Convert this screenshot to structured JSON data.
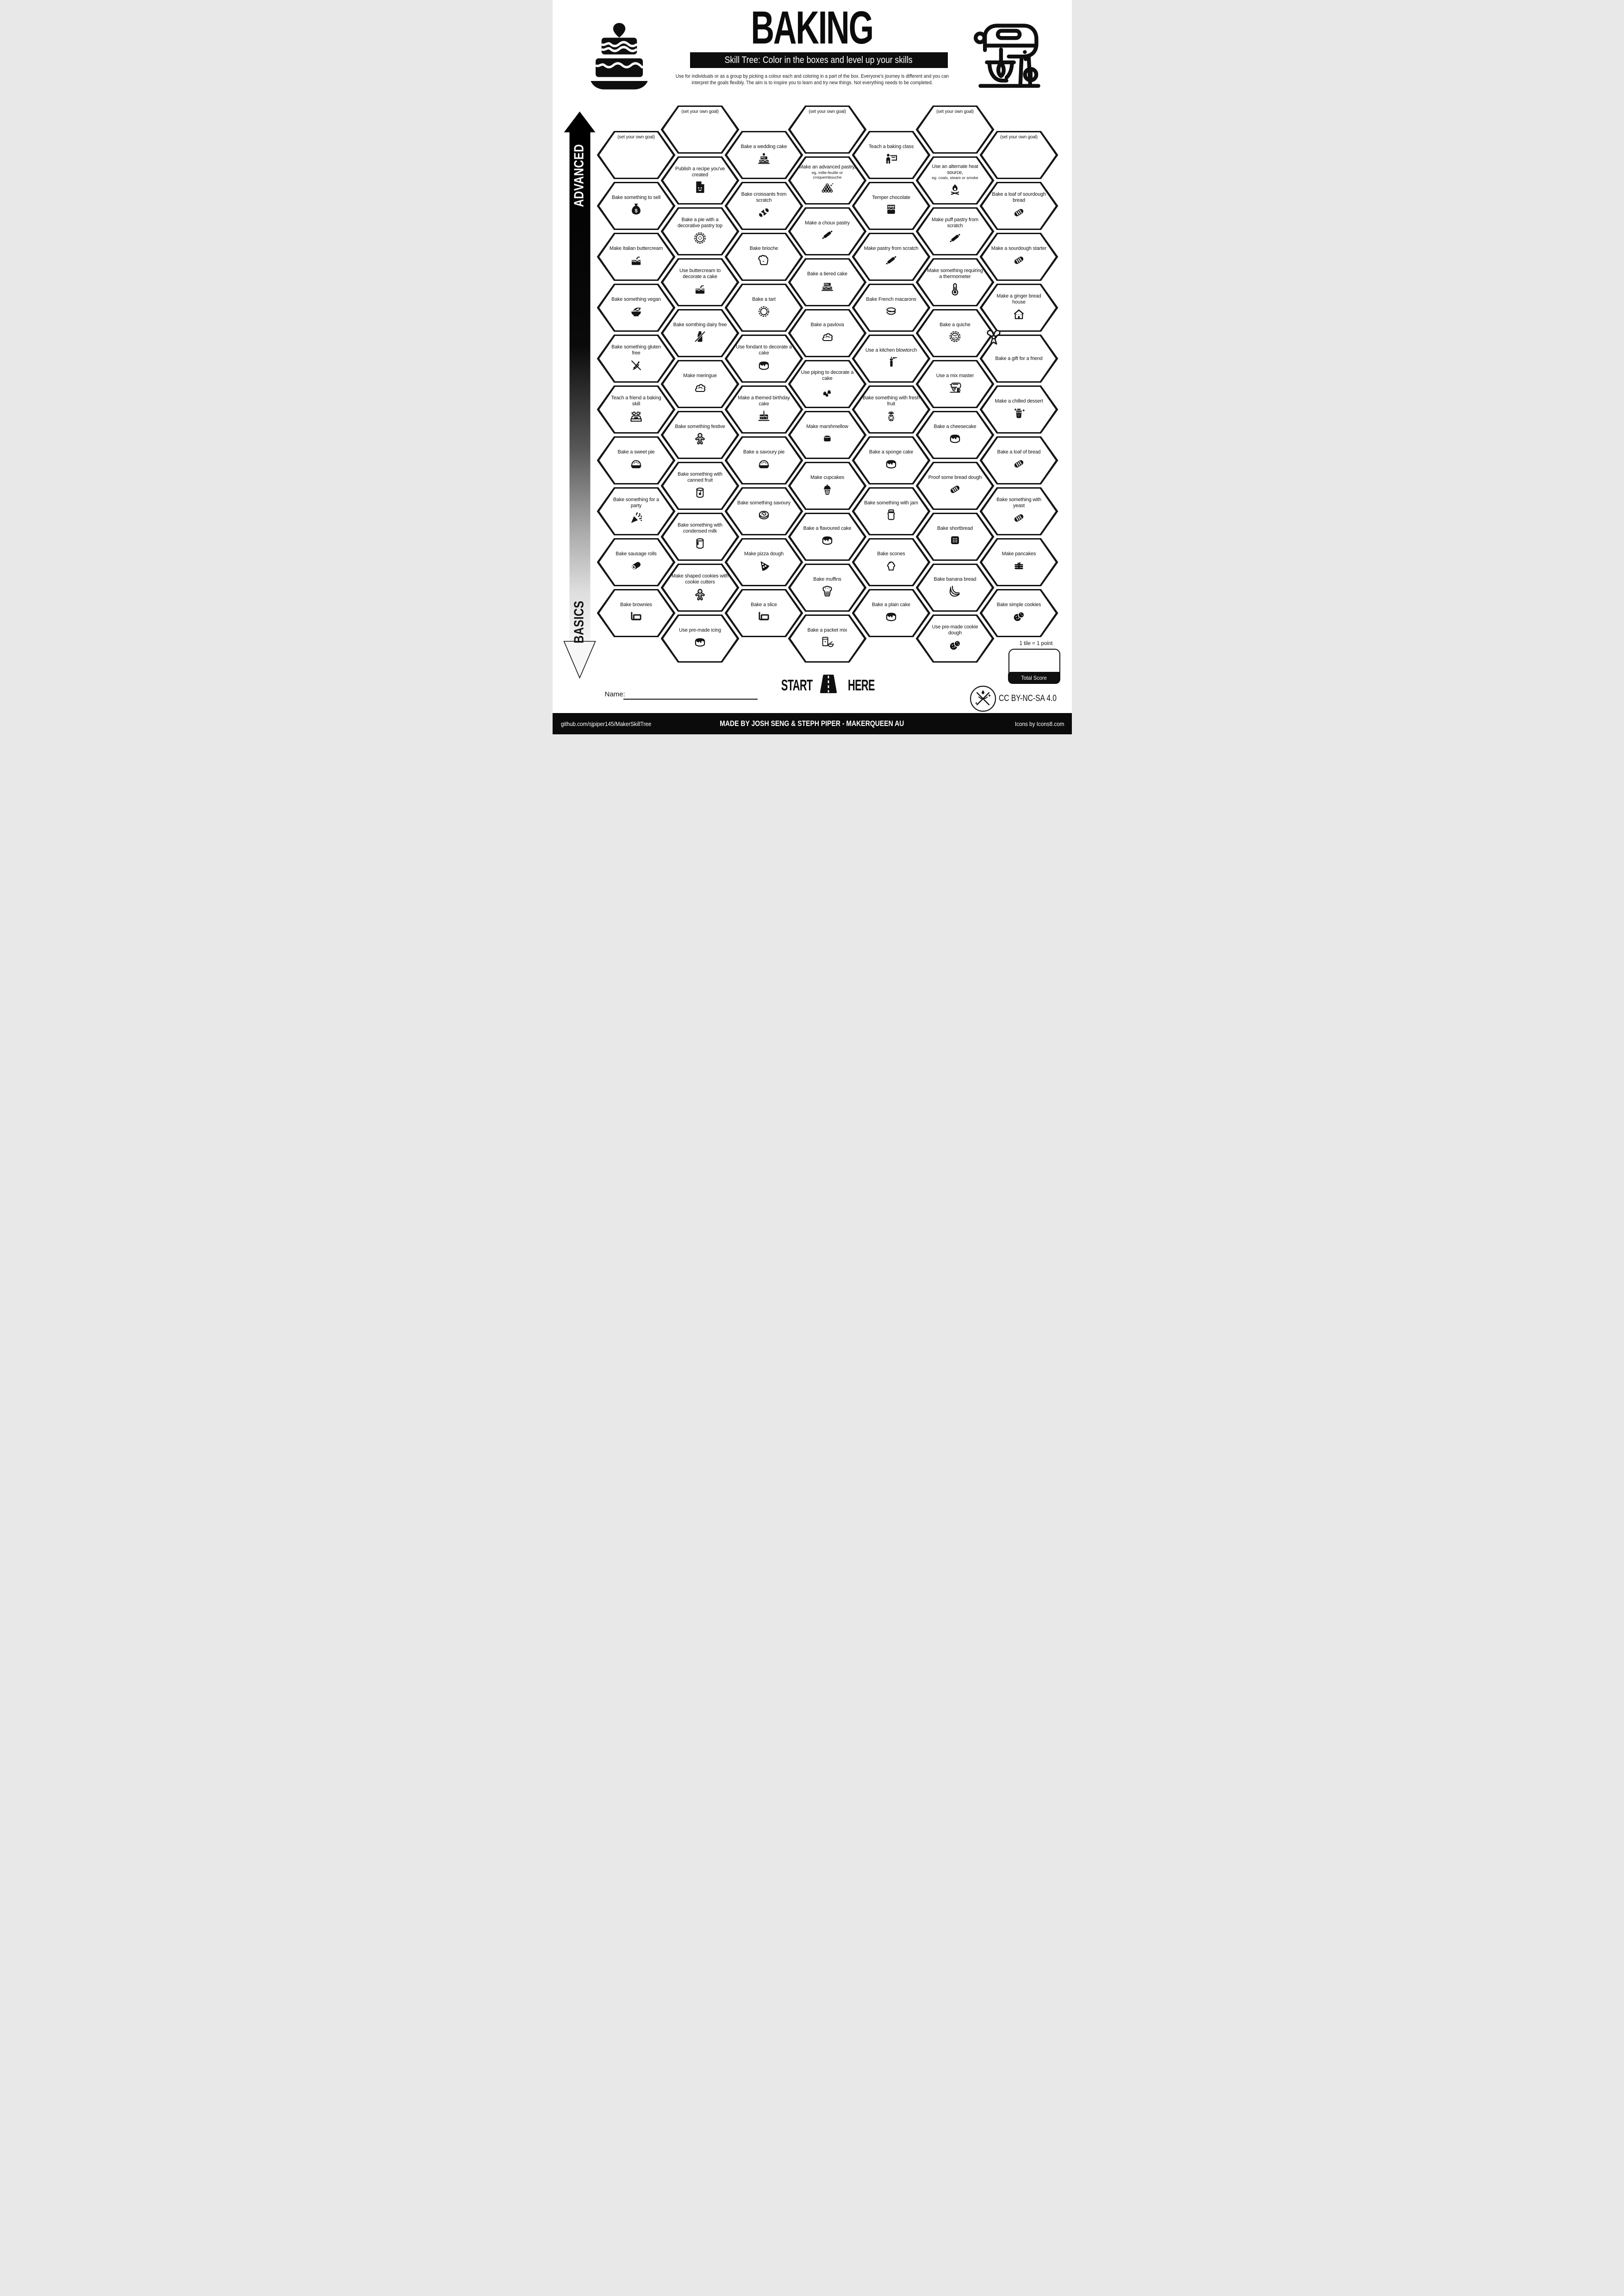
{
  "colors": {
    "ink": "#111111",
    "paper": "#ffffff",
    "bar": "#0d0d0d",
    "arrow_top": "#000000",
    "arrow_bottom": "#f4f4f4"
  },
  "header": {
    "title": "BAKING",
    "subtitle": "Skill Tree:  Color in the boxes and level up your skills",
    "description": "Use for individuals or as a group by picking a colour each and coloring in a part of the box.  Everyone's journey is different and you can interpret the goals flexibly.  The aim is to inspire you to learn and try new things. Not everything needs to be completed."
  },
  "axis": {
    "top": "ADVANCED",
    "bottom": "BASICS"
  },
  "start": {
    "left": "START",
    "right": "HERE"
  },
  "name_label": "Name:",
  "scoring": {
    "note": "1 tile = 1 point",
    "total_label": "Total Score"
  },
  "license": "CC BY-NC-SA 4.0",
  "footer": {
    "left": "github.com/sjpiper145/MakerSkillTree",
    "center": "MADE BY JOSH SENG & STEPH PIPER  -  MAKERQUEEN AU",
    "right": "Icons by Icons8.com"
  },
  "tiles": [
    {
      "col": 1,
      "row": 1,
      "label": "(set your own goal)",
      "icon": "",
      "goal": true
    },
    {
      "col": 1,
      "row": 2,
      "label": "Bake something to sell",
      "icon": "money-bag"
    },
    {
      "col": 1,
      "row": 3,
      "label": "Make Italian buttercream",
      "icon": "buttercream-cake"
    },
    {
      "col": 1,
      "row": 4,
      "label": "Bake something vegan",
      "icon": "bowl-leaf"
    },
    {
      "col": 1,
      "row": 5,
      "label": "Bake something gluten free",
      "icon": "wheat-crossed"
    },
    {
      "col": 1,
      "row": 6,
      "label": "Teach a friend a baking skill",
      "icon": "people-desk"
    },
    {
      "col": 1,
      "row": 7,
      "label": "Bake a sweet pie",
      "icon": "pie"
    },
    {
      "col": 1,
      "row": 8,
      "label": "Bake something for a party",
      "icon": "party-popper"
    },
    {
      "col": 1,
      "row": 9,
      "label": "Bake sausage rolls",
      "icon": "sausage-roll"
    },
    {
      "col": 1,
      "row": 10,
      "label": "Bake brownies",
      "icon": "brownie-pan"
    },
    {
      "col": 2,
      "row": 1,
      "label": "(set your own goal)",
      "icon": "",
      "goal": true
    },
    {
      "col": 2,
      "row": 2,
      "label": "Publish a recipe you've created",
      "icon": "recipe-doc"
    },
    {
      "col": 2,
      "row": 3,
      "label": "Bake a pie with a decorative pastry top",
      "icon": "decorative-pie"
    },
    {
      "col": 2,
      "row": 4,
      "label": "Use buttercream to decorate a cake",
      "icon": "buttercream-cake"
    },
    {
      "col": 2,
      "row": 5,
      "label": "Bake somthing dairy free",
      "icon": "milk-crossed"
    },
    {
      "col": 2,
      "row": 6,
      "label": "Make meringue",
      "icon": "meringue"
    },
    {
      "col": 2,
      "row": 7,
      "label": "Bake something festive",
      "icon": "gingerbread"
    },
    {
      "col": 2,
      "row": 8,
      "label": "Bake something with canned fruit",
      "icon": "can-fruit"
    },
    {
      "col": 2,
      "row": 9,
      "label": "Bake something with condensed milk",
      "icon": "can-drip"
    },
    {
      "col": 2,
      "row": 10,
      "label": "Make shaped cookies with cookie cutters",
      "icon": "gingerbread"
    },
    {
      "col": 2,
      "row": 11,
      "label": "Use pre-made icing",
      "icon": "iced-cake"
    },
    {
      "col": 3,
      "row": 1,
      "label": "Bake a wedding cake",
      "icon": "wedding-cake"
    },
    {
      "col": 3,
      "row": 2,
      "label": "Bake croissants from scratch",
      "icon": "croissant"
    },
    {
      "col": 3,
      "row": 3,
      "label": "Bake brioche",
      "icon": "brioche"
    },
    {
      "col": 3,
      "row": 4,
      "label": "Bake a tart",
      "icon": "tart"
    },
    {
      "col": 3,
      "row": 5,
      "label": "Use fondant to decorate a cake",
      "icon": "iced-cake"
    },
    {
      "col": 3,
      "row": 6,
      "label": "Make a themed birthday cake",
      "icon": "birthday-cake"
    },
    {
      "col": 3,
      "row": 7,
      "label": "Bake a savoury pie",
      "icon": "pie"
    },
    {
      "col": 3,
      "row": 8,
      "label": "Bake something savoury",
      "icon": "savoury-roll"
    },
    {
      "col": 3,
      "row": 9,
      "label": "Make pizza dough",
      "icon": "pizza"
    },
    {
      "col": 3,
      "row": 10,
      "label": "Bake a slice",
      "icon": "brownie-pan"
    },
    {
      "col": 4,
      "row": 1,
      "label": "(set your own goal)",
      "icon": "",
      "goal": true
    },
    {
      "col": 4,
      "row": 2,
      "label": "Make an advanced pastry,",
      "sub": "eg. mille-feuille or croquembouche",
      "icon": "croquembouche"
    },
    {
      "col": 4,
      "row": 3,
      "label": "Make a choux pastry",
      "icon": "rolling-pin"
    },
    {
      "col": 4,
      "row": 4,
      "label": "Bake a tiered cake",
      "icon": "tiered-cake"
    },
    {
      "col": 4,
      "row": 5,
      "label": "Bake a pavlova",
      "icon": "meringue"
    },
    {
      "col": 4,
      "row": 6,
      "label": "Use piping to decorate a cake",
      "icon": "piping"
    },
    {
      "col": 4,
      "row": 7,
      "label": "Make marshmellow",
      "icon": "marshmallow"
    },
    {
      "col": 4,
      "row": 8,
      "label": "Make cupcakes",
      "icon": "cupcake"
    },
    {
      "col": 4,
      "row": 9,
      "label": "Bake a flavoured cake",
      "icon": "iced-cake"
    },
    {
      "col": 4,
      "row": 10,
      "label": "Bake muffins",
      "icon": "muffin"
    },
    {
      "col": 4,
      "row": 11,
      "label": "Bake a packet mix",
      "icon": "packet-mix"
    },
    {
      "col": 5,
      "row": 1,
      "label": "Teach a baking class",
      "icon": "teacher"
    },
    {
      "col": 5,
      "row": 2,
      "label": "Temper chocolate",
      "icon": "chocolate"
    },
    {
      "col": 5,
      "row": 3,
      "label": "Make pastry from scratch",
      "icon": "rolling-pin"
    },
    {
      "col": 5,
      "row": 4,
      "label": "Bake French macarons",
      "icon": "macaron"
    },
    {
      "col": 5,
      "row": 5,
      "label": "Use a kitchen blowtorch",
      "icon": "blowtorch"
    },
    {
      "col": 5,
      "row": 6,
      "label": "Bake something with fresh fruit",
      "icon": "pineapple"
    },
    {
      "col": 5,
      "row": 7,
      "label": "Bake a sponge cake",
      "icon": "iced-cake"
    },
    {
      "col": 5,
      "row": 8,
      "label": "Bake something with jam",
      "icon": "jam-jar"
    },
    {
      "col": 5,
      "row": 9,
      "label": "Bake scones",
      "icon": "scone"
    },
    {
      "col": 5,
      "row": 10,
      "label": "Bake a plain cake",
      "icon": "iced-cake"
    },
    {
      "col": 6,
      "row": 1,
      "label": "(set your own goal)",
      "icon": "",
      "goal": true
    },
    {
      "col": 6,
      "row": 2,
      "label": "Use an alternate heat source,",
      "sub": "eg. coals, steam or smoke",
      "icon": "campfire"
    },
    {
      "col": 6,
      "row": 3,
      "label": "Make puff pastry from scratch",
      "icon": "rolling-pin"
    },
    {
      "col": 6,
      "row": 4,
      "label": "Make something requiring a thermometer",
      "icon": "thermometer"
    },
    {
      "col": 6,
      "row": 5,
      "label": "Bake a quiche",
      "icon": "quiche"
    },
    {
      "col": 6,
      "row": 6,
      "label": "Use a mix master",
      "icon": "mixer"
    },
    {
      "col": 6,
      "row": 7,
      "label": "Bake a cheesecake",
      "icon": "iced-cake"
    },
    {
      "col": 6,
      "row": 8,
      "label": "Proof some bread dough",
      "icon": "bread"
    },
    {
      "col": 6,
      "row": 9,
      "label": "Bake shortbread",
      "icon": "shortbread"
    },
    {
      "col": 6,
      "row": 10,
      "label": "Bake banana bread",
      "icon": "banana"
    },
    {
      "col": 6,
      "row": 11,
      "label": "Use pre-made cookie dough",
      "icon": "cookies"
    },
    {
      "col": 7,
      "row": 1,
      "label": "(set your own goal)",
      "icon": "",
      "goal": true
    },
    {
      "col": 7,
      "row": 2,
      "label": "Bake a loaf of sourdough bread",
      "icon": "bread"
    },
    {
      "col": 7,
      "row": 3,
      "label": "Make a sourdough starter",
      "icon": "bread"
    },
    {
      "col": 7,
      "row": 4,
      "label": "Make a ginger bread house",
      "icon": "ginger-house"
    },
    {
      "col": 7,
      "row": 5,
      "label": "Bake a gift for a friend",
      "icon": "",
      "bow": true
    },
    {
      "col": 7,
      "row": 6,
      "label": "Make a chilled dessert",
      "icon": "chilled-glass"
    },
    {
      "col": 7,
      "row": 7,
      "label": "Bake a loaf of bread",
      "icon": "bread"
    },
    {
      "col": 7,
      "row": 8,
      "label": "Bake something with yeast",
      "icon": "bread"
    },
    {
      "col": 7,
      "row": 9,
      "label": "Make pancakes",
      "icon": "pancakes"
    },
    {
      "col": 7,
      "row": 10,
      "label": "Bake simple cookies",
      "icon": "cookies"
    }
  ]
}
